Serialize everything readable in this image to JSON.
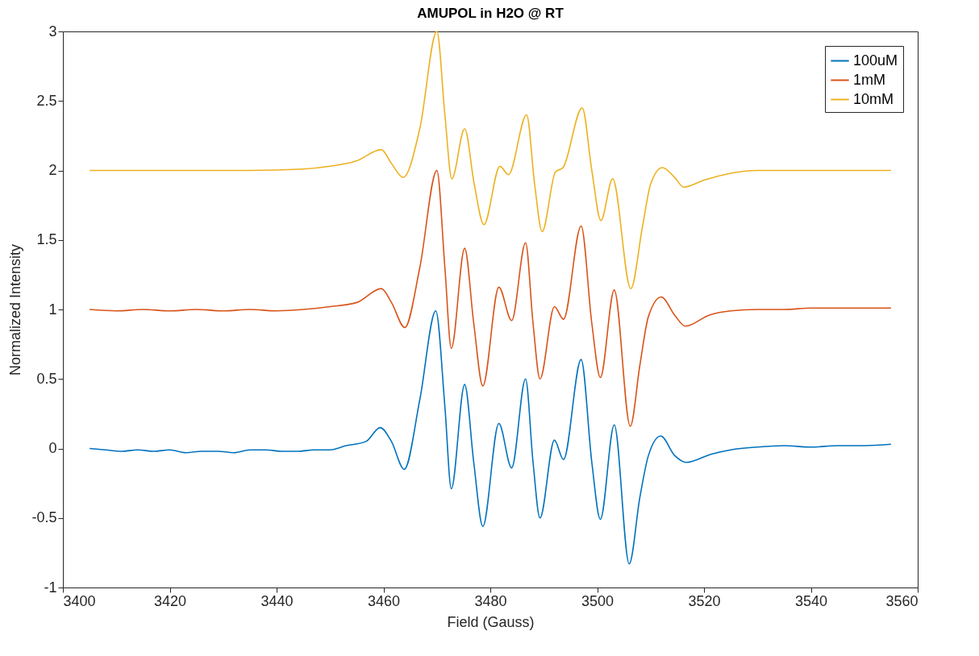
{
  "chart_data": {
    "type": "line",
    "title": "AMUPOL in H2O @ RT",
    "xlabel": "Field (Gauss)",
    "ylabel": "Normalized Intensity",
    "xlim": [
      3400,
      3560
    ],
    "xticks": [
      3400,
      3420,
      3440,
      3460,
      3480,
      3500,
      3520,
      3540,
      3560
    ],
    "ylim": [
      -1,
      3
    ],
    "yticks": [
      -1,
      -0.5,
      0,
      0.5,
      1,
      1.5,
      2,
      2.5,
      3
    ],
    "grid": false,
    "legend": "top right",
    "marker": "none",
    "line_style": "solid",
    "series": [
      {
        "name": "100uM",
        "color": "#0072bd",
        "x": [
          3405,
          3408,
          3411,
          3414,
          3417,
          3420,
          3423,
          3426,
          3429,
          3432,
          3435,
          3438,
          3441,
          3444,
          3447,
          3450,
          3453,
          3456.7,
          3459.4,
          3461.5,
          3463.9,
          3466.8,
          3469.8,
          3471.5,
          3472.7,
          3475.2,
          3476.9,
          3478.6,
          3481.6,
          3484,
          3486.6,
          3488,
          3489.3,
          3492,
          3493.7,
          3497,
          3499,
          3500.6,
          3503.2,
          3506,
          3508,
          3509.6,
          3511.9,
          3514.5,
          3516.7,
          3521.4,
          3525,
          3530,
          3535,
          3540,
          3545,
          3550,
          3555
        ],
        "values": [
          0,
          -0.01,
          -0.02,
          -0.01,
          -0.02,
          -0.01,
          -0.03,
          -0.02,
          -0.02,
          -0.03,
          -0.01,
          -0.01,
          -0.02,
          -0.02,
          -0.01,
          -0.01,
          0.02,
          0.05,
          0.15,
          0.05,
          -0.15,
          0.35,
          0.99,
          0.3,
          -0.29,
          0.46,
          -0.1,
          -0.56,
          0.18,
          -0.14,
          0.5,
          -0.1,
          -0.5,
          0.06,
          -0.08,
          0.64,
          -0.1,
          -0.51,
          0.17,
          -0.83,
          -0.35,
          -0.05,
          0.09,
          -0.05,
          -0.1,
          -0.04,
          -0.01,
          0.01,
          0.02,
          0.01,
          0.02,
          0.02,
          0.03
        ]
      },
      {
        "name": "1mM",
        "color": "#d95319",
        "x": [
          3405,
          3410,
          3415,
          3420,
          3425,
          3430,
          3435,
          3440,
          3445,
          3450,
          3455,
          3459.6,
          3461.5,
          3464,
          3466.8,
          3470,
          3471.5,
          3472.7,
          3475.2,
          3476.9,
          3478.6,
          3481.6,
          3484,
          3486.6,
          3488,
          3489.3,
          3492,
          3493.7,
          3497,
          3499,
          3500.6,
          3503.2,
          3506.2,
          3508,
          3509.6,
          3512,
          3514.5,
          3516.5,
          3521,
          3525,
          3530,
          3535,
          3540,
          3545,
          3550,
          3555
        ],
        "values": [
          1,
          0.99,
          1.0,
          0.99,
          1.0,
          0.99,
          1.0,
          0.99,
          1.0,
          1.02,
          1.05,
          1.15,
          1.05,
          0.87,
          1.3,
          2.0,
          1.3,
          0.72,
          1.44,
          0.9,
          0.45,
          1.16,
          0.92,
          1.48,
          0.9,
          0.5,
          1.02,
          0.93,
          1.6,
          0.9,
          0.51,
          1.14,
          0.16,
          0.6,
          0.95,
          1.09,
          0.96,
          0.88,
          0.96,
          0.99,
          1.0,
          1.0,
          1.01,
          1.01,
          1.01,
          1.01
        ]
      },
      {
        "name": "10mM",
        "color": "#edb120",
        "x": [
          3405,
          3420,
          3435,
          3445,
          3450,
          3455,
          3459.6,
          3461.5,
          3463.7,
          3466.8,
          3470,
          3471.5,
          3472.8,
          3475.2,
          3477,
          3478.8,
          3481.8,
          3483.4,
          3486.8,
          3488.3,
          3489.7,
          3492.2,
          3493.6,
          3497.2,
          3499,
          3500.7,
          3502.9,
          3506.3,
          3508.5,
          3510,
          3512.2,
          3514.5,
          3516.2,
          3520,
          3525,
          3530,
          3540,
          3555
        ],
        "values": [
          2,
          2,
          2,
          2.01,
          2.03,
          2.07,
          2.15,
          2.05,
          1.95,
          2.3,
          3.0,
          2.4,
          1.94,
          2.3,
          1.9,
          1.61,
          2.03,
          1.97,
          2.4,
          1.9,
          1.56,
          1.99,
          2.02,
          2.45,
          2.0,
          1.64,
          1.94,
          1.15,
          1.6,
          1.9,
          2.02,
          1.95,
          1.88,
          1.93,
          1.98,
          2.0,
          2.0,
          2.0
        ]
      }
    ]
  }
}
